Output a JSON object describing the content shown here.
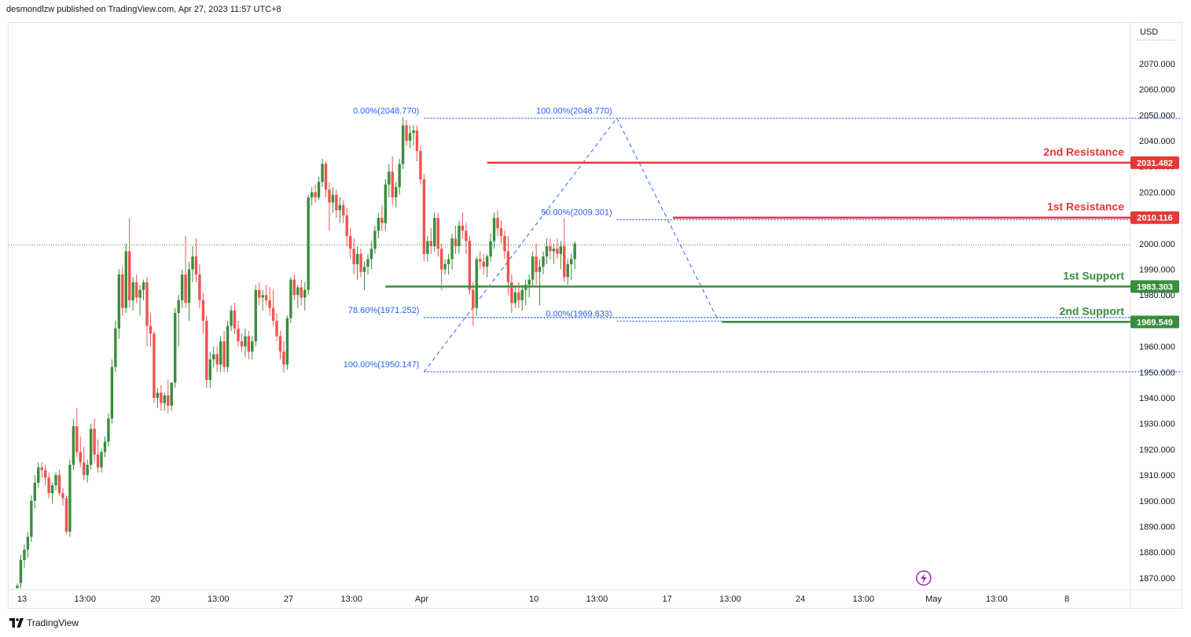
{
  "header": {
    "publisher_line": "desmondlzw published on TradingView.com, Apr 27, 2023 11:57 UTC+8"
  },
  "footer": {
    "brand": "TradingView"
  },
  "colors": {
    "up": "#388e3c",
    "down": "#ef5350",
    "resistance": "#e53935",
    "support": "#388e3c",
    "fib": "#2962ff",
    "current": "#388e3c"
  },
  "chart_data": {
    "type": "candlestick",
    "currency_label": "USD",
    "y_range": [
      1866,
      2080
    ],
    "y_ticks": [
      2070,
      2060,
      2050,
      2040,
      2030,
      2020,
      2010,
      2000,
      1990,
      1980,
      1970,
      1960,
      1950,
      1940,
      1930,
      1920,
      1910,
      1900,
      1890,
      1880,
      1870
    ],
    "y_tick_labels": [
      "2070.000",
      "2060.000",
      "2050.000",
      "2040.000",
      "2030.000",
      "2020.000",
      "2010.000",
      "2000.000",
      "1990.000",
      "1980.000",
      "1970.000",
      "1960.000",
      "1950.000",
      "1940.000",
      "1930.000",
      "1920.000",
      "1910.000",
      "1900.000",
      "1890.000",
      "1880.000",
      "1870.000"
    ],
    "x_ticks": [
      {
        "label": "13",
        "bar": 0
      },
      {
        "label": "13:00",
        "bar": 18
      },
      {
        "label": "20",
        "bar": 38
      },
      {
        "label": "13:00",
        "bar": 56
      },
      {
        "label": "27",
        "bar": 76
      },
      {
        "label": "13:00",
        "bar": 94
      },
      {
        "label": "Apr",
        "bar": 114
      },
      {
        "label": "10",
        "bar": 146
      },
      {
        "label": "13:00",
        "bar": 164
      },
      {
        "label": "17",
        "bar": 184
      },
      {
        "label": "13:00",
        "bar": 202
      },
      {
        "label": "24",
        "bar": 222
      },
      {
        "label": "13:00",
        "bar": 240
      },
      {
        "label": "May",
        "bar": 260
      },
      {
        "label": "13:00",
        "bar": 278
      },
      {
        "label": "8",
        "bar": 298
      }
    ],
    "current_price": 1999.5,
    "levels": [
      {
        "name": "2nd Resistance",
        "price": 2031.482,
        "tag": "2031.482",
        "kind": "resistance",
        "start_bar": 134
      },
      {
        "name": "1st Resistance",
        "price": 2010.116,
        "tag": "2010.116",
        "kind": "resistance",
        "start_bar": 187
      },
      {
        "name": "1st Support",
        "price": 1983.303,
        "tag": "1983.303",
        "kind": "support",
        "start_bar": 105
      },
      {
        "name": "2nd Support",
        "price": 1969.549,
        "tag": "1969.549",
        "kind": "support",
        "start_bar": 201
      }
    ],
    "fib_levels": [
      {
        "label": "0.00%(2048.770)",
        "price": 2048.77,
        "start_bar": 116
      },
      {
        "label": "100.00%(2048.770)",
        "price": 2048.77,
        "start_bar": 171
      },
      {
        "label": "50.00%(2009.301)",
        "price": 2009.301,
        "start_bar": 171
      },
      {
        "label": "78.60%(1971.252)",
        "price": 1971.252,
        "start_bar": 116
      },
      {
        "label": "0.00%(1969.833)",
        "price": 1969.833,
        "start_bar": 171
      },
      {
        "label": "100.00%(1950.147)",
        "price": 1950.147,
        "start_bar": 116
      }
    ],
    "fib_trend_lines": [
      {
        "from_bar": 116,
        "from_price": 1950.147,
        "to_bar": 171,
        "to_price": 2048.77
      },
      {
        "from_bar": 171,
        "from_price": 2048.77,
        "to_bar": 200,
        "to_price": 1969.833
      }
    ],
    "candles": [
      [
        1866,
        1868,
        1866,
        1867
      ],
      [
        1868,
        1879,
        1866,
        1877
      ],
      [
        1877,
        1883,
        1874,
        1881
      ],
      [
        1881,
        1888,
        1878,
        1886
      ],
      [
        1886,
        1902,
        1884,
        1900
      ],
      [
        1900,
        1910,
        1897,
        1907
      ],
      [
        1907,
        1915,
        1905,
        1913
      ],
      [
        1913,
        1915,
        1909,
        1912
      ],
      [
        1912,
        1914,
        1906,
        1909
      ],
      [
        1909,
        1911,
        1901,
        1903
      ],
      [
        1903,
        1907,
        1899,
        1906
      ],
      [
        1906,
        1911,
        1904,
        1910
      ],
      [
        1910,
        1912,
        1902,
        1903
      ],
      [
        1903,
        1905,
        1898,
        1901
      ],
      [
        1901,
        1902,
        1887,
        1888
      ],
      [
        1888,
        1916,
        1886,
        1914
      ],
      [
        1914,
        1932,
        1912,
        1929
      ],
      [
        1929,
        1936,
        1917,
        1919
      ],
      [
        1919,
        1925,
        1913,
        1915
      ],
      [
        1915,
        1921,
        1908,
        1910
      ],
      [
        1910,
        1916,
        1907,
        1914
      ],
      [
        1914,
        1930,
        1912,
        1928
      ],
      [
        1928,
        1932,
        1915,
        1918
      ],
      [
        1918,
        1924,
        1911,
        1913
      ],
      [
        1913,
        1920,
        1911,
        1919
      ],
      [
        1919,
        1925,
        1917,
        1923
      ],
      [
        1923,
        1934,
        1921,
        1932
      ],
      [
        1932,
        1955,
        1930,
        1952
      ],
      [
        1952,
        1970,
        1950,
        1967
      ],
      [
        1967,
        1990,
        1963,
        1988
      ],
      [
        1988,
        1991,
        1972,
        1975
      ],
      [
        1975,
        2000,
        1973,
        1997
      ],
      [
        1997,
        2010,
        1975,
        1978
      ],
      [
        1978,
        1987,
        1974,
        1985
      ],
      [
        1985,
        1988,
        1977,
        1979
      ],
      [
        1979,
        1984,
        1972,
        1982
      ],
      [
        1982,
        1986,
        1978,
        1985
      ],
      [
        1985,
        1987,
        1960,
        1968
      ],
      [
        1968,
        1973,
        1960,
        1965
      ],
      [
        1965,
        1966,
        1938,
        1940
      ],
      [
        1940,
        1944,
        1936,
        1942
      ],
      [
        1942,
        1945,
        1935,
        1938
      ],
      [
        1938,
        1942,
        1935,
        1941
      ],
      [
        1941,
        1947,
        1934,
        1937
      ],
      [
        1937,
        1946,
        1935,
        1946
      ],
      [
        1946,
        1975,
        1944,
        1973
      ],
      [
        1973,
        1980,
        1960,
        1978
      ],
      [
        1978,
        1990,
        1975,
        1988
      ],
      [
        1988,
        2003,
        1975,
        1977
      ],
      [
        1977,
        1993,
        1970,
        1990
      ],
      [
        1990,
        1999,
        1985,
        1995
      ],
      [
        1995,
        2002,
        1985,
        1988
      ],
      [
        1988,
        1992,
        1975,
        1978
      ],
      [
        1978,
        1981,
        1965,
        1970
      ],
      [
        1970,
        1972,
        1944,
        1947
      ],
      [
        1947,
        1958,
        1944,
        1955
      ],
      [
        1955,
        1960,
        1952,
        1957
      ],
      [
        1957,
        1960,
        1950,
        1953
      ],
      [
        1953,
        1964,
        1950,
        1962
      ],
      [
        1962,
        1966,
        1950,
        1952
      ],
      [
        1952,
        1970,
        1950,
        1968
      ],
      [
        1968,
        1976,
        1966,
        1974
      ],
      [
        1974,
        1977,
        1965,
        1967
      ],
      [
        1967,
        1970,
        1960,
        1962
      ],
      [
        1962,
        1965,
        1958,
        1960
      ],
      [
        1960,
        1967,
        1956,
        1964
      ],
      [
        1964,
        1966,
        1955,
        1958
      ],
      [
        1958,
        1964,
        1955,
        1962
      ],
      [
        1962,
        1984,
        1960,
        1982
      ],
      [
        1982,
        1985,
        1976,
        1979
      ],
      [
        1979,
        1982,
        1974,
        1980
      ],
      [
        1980,
        1984,
        1976,
        1978
      ],
      [
        1978,
        1983,
        1972,
        1975
      ],
      [
        1975,
        1982,
        1968,
        1970
      ],
      [
        1970,
        1973,
        1962,
        1964
      ],
      [
        1964,
        1966,
        1955,
        1958
      ],
      [
        1958,
        1962,
        1950,
        1953
      ],
      [
        1953,
        1972,
        1951,
        1971
      ],
      [
        1971,
        1987,
        1969,
        1986
      ],
      [
        1986,
        1988,
        1978,
        1980
      ],
      [
        1980,
        1984,
        1975,
        1983
      ],
      [
        1983,
        1986,
        1976,
        1979
      ],
      [
        1979,
        1985,
        1974,
        1982
      ],
      [
        1982,
        2019,
        1980,
        2018
      ],
      [
        2018,
        2022,
        2015,
        2020
      ],
      [
        2020,
        2023,
        2016,
        2018
      ],
      [
        2018,
        2026,
        2017,
        2024
      ],
      [
        2024,
        2033,
        2022,
        2031
      ],
      [
        2031,
        2032,
        2018,
        2021
      ],
      [
        2021,
        2024,
        2005,
        2016
      ],
      [
        2016,
        2022,
        2012,
        2019
      ],
      [
        2019,
        2021,
        2010,
        2013
      ],
      [
        2013,
        2018,
        2008,
        2015
      ],
      [
        2015,
        2017,
        2008,
        2011
      ],
      [
        2011,
        2014,
        1999,
        2003
      ],
      [
        2003,
        2006,
        1994,
        1998
      ],
      [
        1998,
        2002,
        1988,
        1992
      ],
      [
        1992,
        1999,
        1986,
        1996
      ],
      [
        1996,
        1998,
        1987,
        1989
      ],
      [
        1989,
        1993,
        1982,
        1991
      ],
      [
        1991,
        1996,
        1988,
        1994
      ],
      [
        1994,
        2001,
        1990,
        1998
      ],
      [
        1998,
        2007,
        1996,
        2005
      ],
      [
        2005,
        2012,
        2002,
        2010
      ],
      [
        2010,
        2015,
        2005,
        2008
      ],
      [
        2008,
        2025,
        2005,
        2023
      ],
      [
        2023,
        2031,
        2018,
        2028
      ],
      [
        2028,
        2034,
        2015,
        2018
      ],
      [
        2018,
        2024,
        2014,
        2022
      ],
      [
        2022,
        2033,
        2019,
        2031
      ],
      [
        2031,
        2049,
        2029,
        2046
      ],
      [
        2046,
        2048,
        2038,
        2040
      ],
      [
        2040,
        2046,
        2037,
        2043
      ],
      [
        2043,
        2046,
        2038,
        2044
      ],
      [
        2044,
        2046,
        2032,
        2036
      ],
      [
        2036,
        2038,
        2023,
        2025
      ],
      [
        2025,
        2027,
        1993,
        1996
      ],
      [
        1996,
        2003,
        1993,
        2001
      ],
      [
        2001,
        2006,
        1996,
        1999
      ],
      [
        1999,
        2012,
        1997,
        2010
      ],
      [
        2010,
        2012,
        1995,
        1998
      ],
      [
        1998,
        2000,
        1982,
        1990
      ],
      [
        1990,
        1994,
        1988,
        1992
      ],
      [
        1992,
        1996,
        1988,
        1994
      ],
      [
        1994,
        2004,
        1990,
        2002
      ],
      [
        2002,
        2007,
        1996,
        1999
      ],
      [
        1999,
        2009,
        1996,
        2007
      ],
      [
        2007,
        2012,
        2002,
        2005
      ],
      [
        2005,
        2008,
        1996,
        2001
      ],
      [
        2001,
        2003,
        1980,
        1982
      ],
      [
        1982,
        1985,
        1968,
        1975
      ],
      [
        1975,
        1995,
        1972,
        1994
      ],
      [
        1994,
        1997,
        1990,
        1993
      ],
      [
        1993,
        1996,
        1988,
        1991
      ],
      [
        1991,
        1996,
        1987,
        1995
      ],
      [
        1995,
        2004,
        1993,
        2001
      ],
      [
        2001,
        2012,
        1998,
        2010
      ],
      [
        2010,
        2013,
        2003,
        2006
      ],
      [
        2006,
        2009,
        2000,
        2003
      ],
      [
        2003,
        2005,
        1994,
        1997
      ],
      [
        1997,
        2003,
        1980,
        1985
      ],
      [
        1985,
        1988,
        1973,
        1977
      ],
      [
        1977,
        1983,
        1975,
        1981
      ],
      [
        1981,
        1985,
        1975,
        1978
      ],
      [
        1978,
        1984,
        1974,
        1982
      ],
      [
        1982,
        1986,
        1976,
        1984
      ],
      [
        1984,
        1988,
        1979,
        1986
      ],
      [
        1986,
        1997,
        1983,
        1995
      ],
      [
        1995,
        2000,
        1984,
        1989
      ],
      [
        1989,
        1994,
        1976,
        1991
      ],
      [
        1991,
        1997,
        1988,
        1995
      ],
      [
        1995,
        2002,
        1992,
        1999
      ],
      [
        1999,
        2002,
        1994,
        1997
      ],
      [
        1997,
        2000,
        1992,
        1998
      ],
      [
        1998,
        2002,
        1994,
        1996
      ],
      [
        1996,
        2001,
        1990,
        1999
      ],
      [
        1999,
        2010,
        1985,
        1987
      ],
      [
        1987,
        1994,
        1984,
        1992
      ],
      [
        1992,
        1996,
        1986,
        1994
      ],
      [
        1994,
        2001,
        1990,
        2000
      ]
    ]
  }
}
